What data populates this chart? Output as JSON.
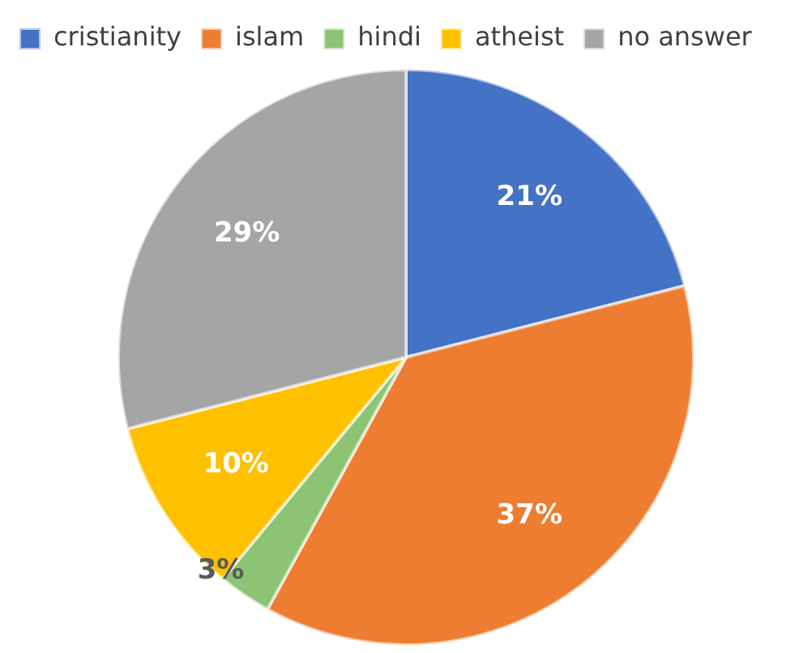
{
  "chart_data": {
    "type": "pie",
    "categories": [
      "cristianity",
      "islam",
      "hindi",
      "atheist",
      "no answer"
    ],
    "values": [
      21,
      37,
      3,
      10,
      29
    ],
    "colors": [
      "#4472c4",
      "#ed7d31",
      "#8cc474",
      "#ffc000",
      "#a5a5a5"
    ],
    "value_labels": [
      "21%",
      "37%",
      "3%",
      "10%",
      "29%"
    ],
    "legend": "top left"
  }
}
